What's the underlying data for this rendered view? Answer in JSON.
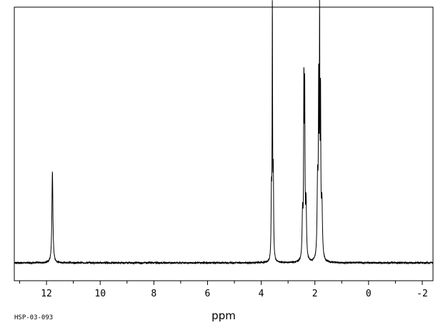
{
  "chart_data": {
    "type": "line",
    "xlabel": "ppm",
    "ylabel": "",
    "title": "",
    "x_direction": "reversed",
    "xlim": [
      13.2,
      -2.4
    ],
    "ylim": [
      -0.07,
      1.0
    ],
    "xticks": [
      12,
      10,
      8,
      6,
      4,
      2,
      0,
      -2
    ],
    "xtick_labels": [
      "12",
      "10",
      "8",
      "6",
      "4",
      "2",
      "0",
      "-2"
    ],
    "minor_ticks": [
      13,
      11,
      9,
      7,
      5,
      3,
      1,
      -1
    ],
    "grid": false,
    "legend": "none",
    "line_color": "#000000",
    "baseline": 0.0,
    "peaks": [
      {
        "ppm": 11.78,
        "height": 0.36,
        "width": 0.022
      },
      {
        "ppm": 3.62,
        "height": 0.25,
        "width": 0.014
      },
      {
        "ppm": 3.585,
        "height": 0.97,
        "width": 0.01
      },
      {
        "ppm": 3.55,
        "height": 0.32,
        "width": 0.014
      },
      {
        "ppm": 2.46,
        "height": 0.18,
        "width": 0.02
      },
      {
        "ppm": 2.41,
        "height": 0.66,
        "width": 0.012
      },
      {
        "ppm": 2.38,
        "height": 0.62,
        "width": 0.012
      },
      {
        "ppm": 2.33,
        "height": 0.22,
        "width": 0.02
      },
      {
        "ppm": 1.9,
        "height": 0.3,
        "width": 0.022
      },
      {
        "ppm": 1.86,
        "height": 0.62,
        "width": 0.012
      },
      {
        "ppm": 1.825,
        "height": 0.88,
        "width": 0.01
      },
      {
        "ppm": 1.79,
        "height": 0.6,
        "width": 0.012
      },
      {
        "ppm": 1.74,
        "height": 0.22,
        "width": 0.024
      }
    ]
  },
  "sample_id": "HSP-03-093"
}
